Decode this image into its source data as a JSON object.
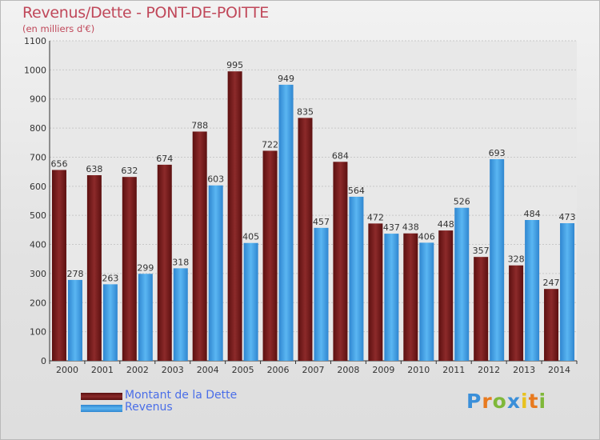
{
  "chart_data": {
    "type": "bar",
    "title": "Revenus/Dette - PONT-DE-POITTE",
    "subtitle": "(en milliers d'€)",
    "categories": [
      "2000",
      "2001",
      "2002",
      "2003",
      "2004",
      "2005",
      "2006",
      "2007",
      "2008",
      "2009",
      "2010",
      "2011",
      "2012",
      "2013",
      "2014"
    ],
    "series": [
      {
        "name": "Montant de la Dette",
        "color": "#7a1c1c",
        "values": [
          656,
          638,
          632,
          674,
          788,
          995,
          722,
          835,
          684,
          472,
          438,
          448,
          357,
          328,
          247
        ]
      },
      {
        "name": "Revenus",
        "color": "#3f9ee6",
        "values": [
          278,
          263,
          299,
          318,
          603,
          405,
          949,
          457,
          564,
          437,
          406,
          526,
          693,
          484,
          473
        ]
      }
    ],
    "ylim": [
      0,
      1100
    ],
    "yticks": [
      0,
      100,
      200,
      300,
      400,
      500,
      600,
      700,
      800,
      900,
      1000,
      1100
    ],
    "grid": true,
    "legend": "bottom-left"
  },
  "logo": {
    "letters": [
      "P",
      "r",
      "o",
      "x",
      "i",
      "t",
      "i"
    ],
    "colors": [
      "#3a8fd9",
      "#e87a1f",
      "#7fb83a",
      "#3a8fd9",
      "#e8c21f",
      "#e87a1f",
      "#7fb83a"
    ]
  }
}
